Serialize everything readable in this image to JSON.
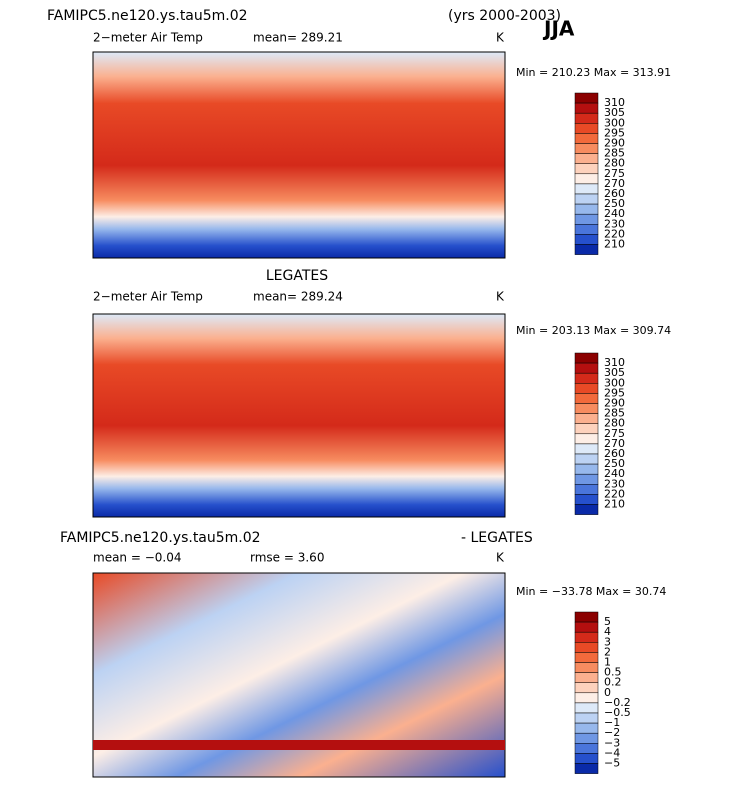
{
  "header": {
    "title": "FAMIPC5.ne120.ys.tau5m.02",
    "years": "(yrs 2000-2003)",
    "season": "JJA"
  },
  "panels": [
    {
      "left": "2−meter Air Temp",
      "center": "mean= 289.21",
      "units": "K",
      "minmax": "Min = 210.23 Max = 313.91",
      "colorbar": [
        "310",
        "305",
        "300",
        "295",
        "290",
        "285",
        "280",
        "275",
        "270",
        "260",
        "250",
        "240",
        "230",
        "220",
        "210"
      ]
    },
    {
      "title": "LEGATES",
      "left": "2−meter Air Temp",
      "center": "mean= 289.24",
      "units": "K",
      "minmax": "Min = 203.13 Max = 309.74",
      "colorbar": [
        "310",
        "305",
        "300",
        "295",
        "290",
        "285",
        "280",
        "275",
        "270",
        "260",
        "250",
        "240",
        "230",
        "220",
        "210"
      ]
    },
    {
      "title_left": "FAMIPC5.ne120.ys.tau5m.02",
      "title_right": "- LEGATES",
      "left": "mean =  −0.04",
      "center": "rmse =   3.60",
      "units": "K",
      "minmax": "Min = −33.78 Max =  30.74",
      "colorbar": [
        "5",
        "4",
        "3",
        "2",
        "1",
        "0.5",
        "0.2",
        "0",
        "−0.2",
        "−0.5",
        "−1",
        "−2",
        "−3",
        "−4",
        "−5"
      ]
    }
  ]
}
